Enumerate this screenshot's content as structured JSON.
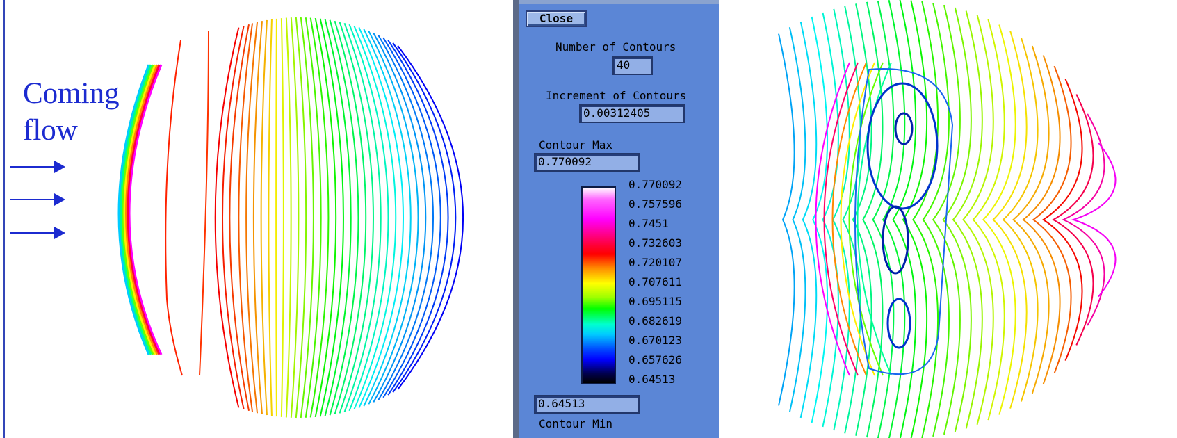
{
  "caption": {
    "line1": "Coming",
    "line2": "flow"
  },
  "panel": {
    "close_label": "Close",
    "num_contours_label": "Number of Contours",
    "num_contours_value": "40",
    "increment_label": "Increment of Contours",
    "increment_value": "0.00312405",
    "max_label": "Contour Max",
    "max_value": "0.770092",
    "min_value": "0.64513",
    "min_label": "Contour Min",
    "colorbar_ticks": [
      "0.770092",
      "0.757596",
      "0.7451",
      "0.732603",
      "0.720107",
      "0.707611",
      "0.695115",
      "0.682619",
      "0.670123",
      "0.657626",
      "0.64513"
    ]
  },
  "colors": {
    "panel_bg": "#5b86d6",
    "caption": "#1c2bd0",
    "arrow": "#1c2bd0"
  }
}
